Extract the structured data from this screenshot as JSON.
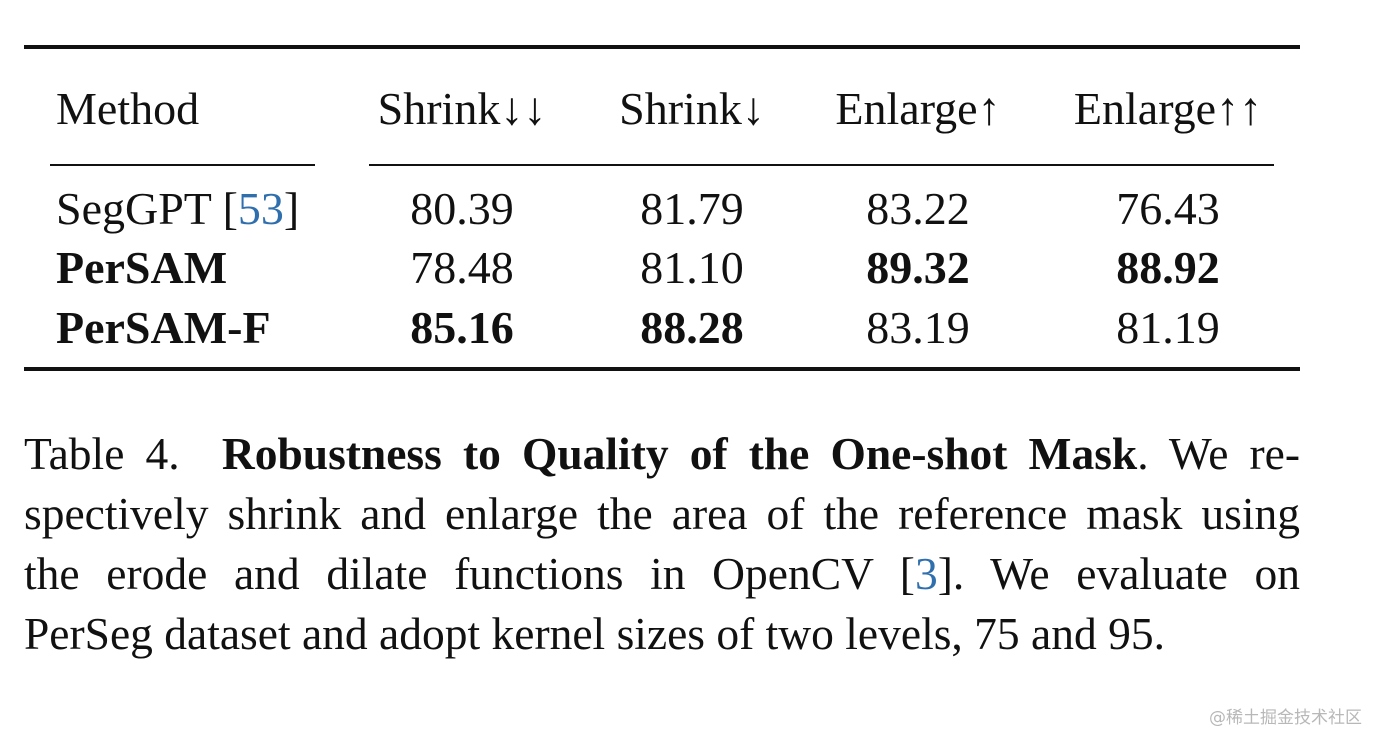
{
  "table": {
    "headers": [
      "Method",
      "Shrink↓↓",
      "Shrink↓",
      "Enlarge↑",
      "Enlarge↑↑"
    ],
    "rows": [
      {
        "method": "SegGPT [",
        "cite": "53",
        "method_end": "]",
        "bold_method": false,
        "values": [
          "80.39",
          "81.79",
          "83.22",
          "76.43"
        ],
        "bold": [
          false,
          false,
          false,
          false
        ]
      },
      {
        "method": "PerSAM",
        "bold_method": true,
        "values": [
          "78.48",
          "81.10",
          "89.32",
          "88.92"
        ],
        "bold": [
          false,
          false,
          true,
          true
        ]
      },
      {
        "method": "PerSAM-F",
        "bold_method": true,
        "values": [
          "85.16",
          "88.28",
          "83.19",
          "81.19"
        ],
        "bold": [
          true,
          true,
          false,
          false
        ]
      }
    ]
  },
  "caption": {
    "label": "Table 4.",
    "title": "Robustness to Quality of the One-shot Mask",
    "line1_rest": ".  We re-",
    "line2": "spectively shrink and enlarge the area of the reference mask using",
    "line3_pre": "the erode and dilate functions in OpenCV [",
    "line3_cite": "3",
    "line3_post": "].  We evaluate on",
    "line4": "PerSeg dataset and adopt kernel sizes of two levels, 75 and 95."
  },
  "watermark": "@稀土掘金技术社区",
  "colors": {
    "citation": "#2f6fae",
    "text": "#111111",
    "watermark": "#b8b8b8"
  }
}
